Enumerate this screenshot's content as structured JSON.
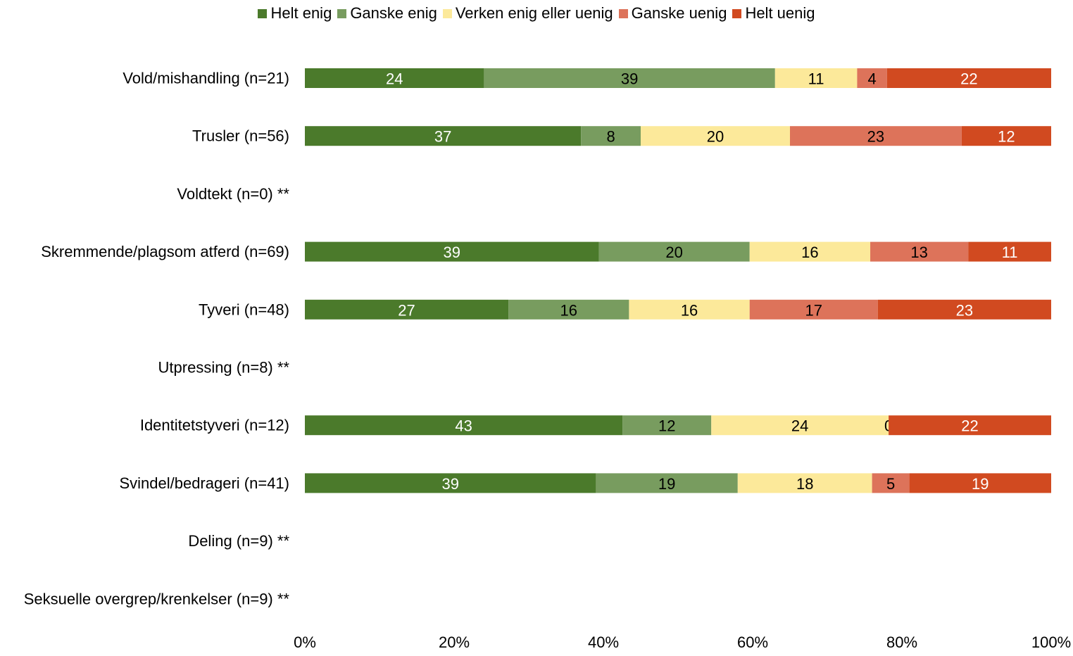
{
  "chart_data": {
    "type": "bar",
    "orientation": "horizontal",
    "stacked": true,
    "percent": true,
    "categories": [
      "Vold/mishandling (n=21)",
      "Trusler (n=56)",
      "Voldtekt (n=0) **",
      "Skremmende/plagsom atferd (n=69)",
      "Tyveri (n=48)",
      "Utpressing (n=8) **",
      "Identitetstyveri (n=12)",
      "Svindel/bedrageri (n=41)",
      "Deling (n=9) **",
      "Seksuelle overgrep/krenkelser (n=9) **"
    ],
    "series": [
      {
        "name": "Helt enig",
        "color": "#4b7a2b",
        "label_color": "#ffffff",
        "values": [
          24,
          37,
          null,
          39,
          27,
          null,
          43,
          39,
          null,
          null
        ]
      },
      {
        "name": "Ganske enig",
        "color": "#789c5f",
        "label_color": "#000000",
        "values": [
          39,
          8,
          null,
          20,
          16,
          null,
          12,
          19,
          null,
          null
        ]
      },
      {
        "name": "Verken enig eller uenig",
        "color": "#fce99a",
        "label_color": "#000000",
        "values": [
          11,
          20,
          null,
          16,
          16,
          null,
          24,
          18,
          null,
          null
        ]
      },
      {
        "name": "Ganske uenig",
        "color": "#dd735a",
        "label_color": "#000000",
        "values": [
          4,
          23,
          null,
          13,
          17,
          null,
          0,
          5,
          null,
          null
        ]
      },
      {
        "name": "Helt uenig",
        "color": "#d14a20",
        "label_color": "#ffffff",
        "values": [
          22,
          12,
          null,
          11,
          23,
          null,
          22,
          19,
          null,
          null
        ]
      }
    ],
    "xlim": [
      0,
      100
    ],
    "x_ticks": [
      "0%",
      "20%",
      "40%",
      "60%",
      "80%",
      "100%"
    ],
    "legend": "top-center",
    "grid": false
  }
}
